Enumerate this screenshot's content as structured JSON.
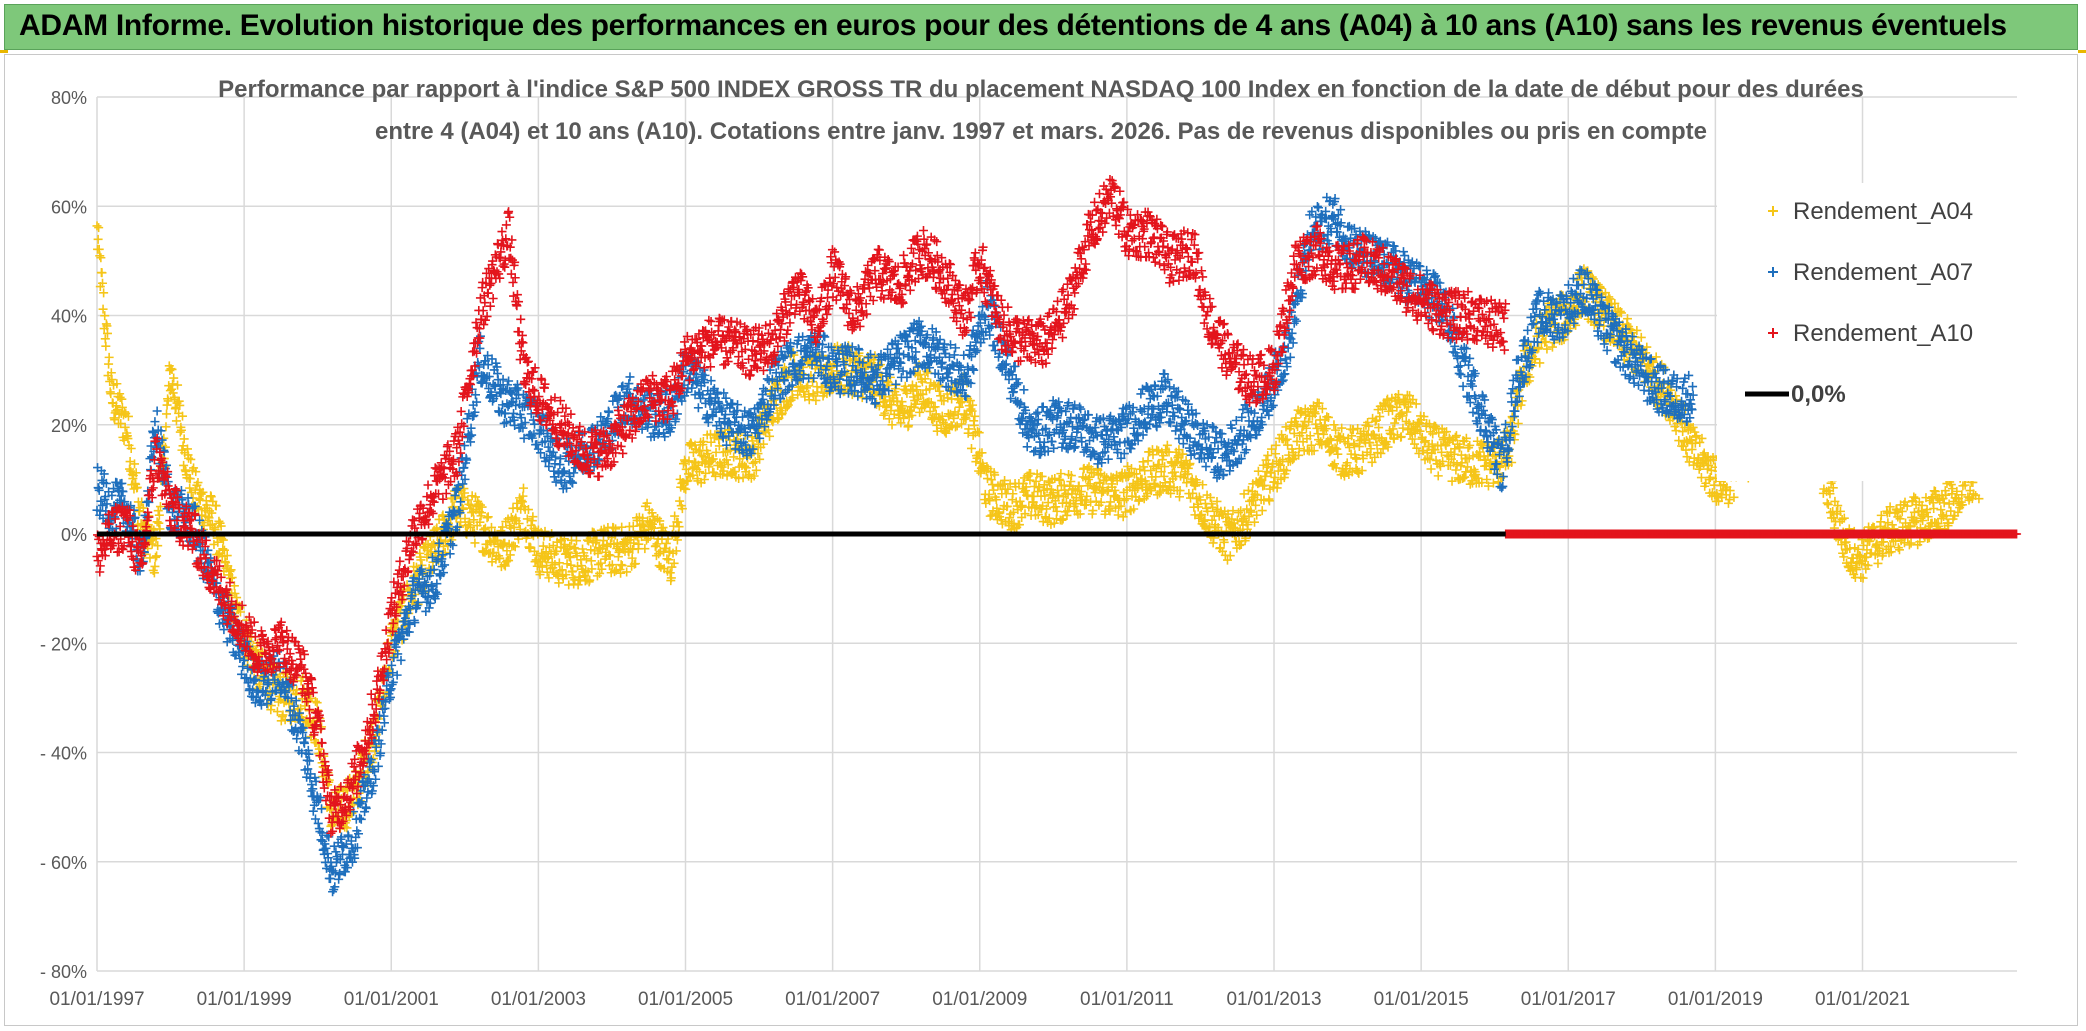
{
  "banner": {
    "title": "ADAM Informe. Evolution historique des performances en euros pour des détentions de 4 ans (A04) à 10 ans (A10) sans les revenus éventuels"
  },
  "colors": {
    "banner": "#7ec87a",
    "a04": "#f5c518",
    "a07": "#1e6fbd",
    "a10": "#e3141c",
    "zero_line": "#000000",
    "grid": "#d9d9d9"
  },
  "chart_data": {
    "type": "scatter",
    "title_line1": "Performance par rapport à l'indice S&P 500 INDEX GROSS TR  du placement NASDAQ 100 Index en fonction de la date de début pour des durées",
    "title_line2": "entre 4 (A04) et 10 ans (A10). Cotations entre janv. 1997 et mars. 2026. Pas de revenus disponibles ou pris en compte",
    "xlabel": "",
    "ylabel": "",
    "x_range": [
      1997.0,
      2023.1
    ],
    "ylim": [
      -80,
      80
    ],
    "y_ticks": [
      80,
      60,
      40,
      20,
      0,
      -20,
      -40,
      -60,
      -80
    ],
    "y_tick_labels": [
      "80%",
      "60%",
      "40%",
      "20%",
      "0%",
      "- 20%",
      "- 40%",
      "- 60%",
      "- 80%"
    ],
    "x_tick_years": [
      1997,
      1999,
      2001,
      2003,
      2005,
      2007,
      2009,
      2011,
      2013,
      2015,
      2017,
      2019,
      2021
    ],
    "x_tick_labels": [
      "01/01/1997",
      "01/01/1999",
      "01/01/2001",
      "01/01/2003",
      "01/01/2005",
      "01/01/2007",
      "01/01/2009",
      "01/01/2011",
      "01/01/2013",
      "01/01/2015",
      "01/01/2017",
      "01/01/2019",
      "01/01/2021"
    ],
    "legend": [
      {
        "name": "Rendement_A04",
        "marker": "plus",
        "color": "#f5c518"
      },
      {
        "name": "Rendement_A07",
        "marker": "plus",
        "color": "#1e6fbd"
      },
      {
        "name": "Rendement_A10",
        "marker": "plus",
        "color": "#e3141c"
      },
      {
        "name": "0,0%",
        "marker": "line",
        "color": "#000000"
      }
    ],
    "series": [
      {
        "name": "Rendement_A04",
        "end": 2022.6,
        "x": [
          1997.0,
          1997.1,
          1997.2,
          1997.4,
          1997.6,
          1997.8,
          1998.0,
          1998.3,
          1998.6,
          1998.9,
          1999.2,
          1999.5,
          1999.8,
          2000.0,
          2000.2,
          2000.5,
          2000.8,
          2001.0,
          2001.3,
          2001.6,
          2001.9,
          2002.2,
          2002.5,
          2002.8,
          2003.0,
          2003.3,
          2003.6,
          2003.9,
          2004.2,
          2004.5,
          2004.8,
          2005.0,
          2005.3,
          2005.6,
          2005.9,
          2006.2,
          2006.5,
          2006.8,
          2007.0,
          2007.3,
          2007.6,
          2007.9,
          2008.2,
          2008.5,
          2008.8,
          2009.1,
          2009.4,
          2009.7,
          2010.0,
          2010.3,
          2010.6,
          2010.9,
          2011.2,
          2011.5,
          2011.8,
          2012.0,
          2012.2,
          2012.4,
          2012.7,
          2013.0,
          2013.3,
          2013.6,
          2013.9,
          2014.2,
          2014.5,
          2014.8,
          2015.1,
          2015.4,
          2015.7,
          2016.0,
          2016.2,
          2016.4,
          2016.7,
          2017.0,
          2017.2,
          2017.5,
          2017.8,
          2018.0,
          2018.2,
          2018.4,
          2018.7,
          2019.0,
          2019.2,
          2019.4,
          2019.7,
          2020.0,
          2020.3,
          2020.6,
          2020.8,
          2021.0,
          2021.3,
          2021.6,
          2021.9,
          2022.2,
          2022.5
        ],
        "y": [
          55,
          40,
          25,
          20,
          2,
          -4,
          30,
          8,
          2,
          -15,
          -25,
          -30,
          -30,
          -35,
          -52,
          -48,
          -35,
          -20,
          -10,
          -3,
          5,
          2,
          -3,
          5,
          -3,
          -5,
          -5,
          -3,
          -3,
          2,
          -5,
          12,
          14,
          15,
          14,
          24,
          30,
          28,
          30,
          30,
          28,
          22,
          27,
          22,
          25,
          8,
          5,
          7,
          6,
          8,
          8,
          7,
          10,
          12,
          11,
          6,
          2,
          -1,
          5,
          12,
          18,
          20,
          15,
          15,
          20,
          22,
          16,
          14,
          13,
          13,
          15,
          30,
          38,
          40,
          45,
          40,
          35,
          32,
          28,
          25,
          15,
          10,
          10,
          14,
          18,
          21,
          20,
          5,
          -3,
          -4,
          0,
          2,
          3,
          6,
          10
        ]
      },
      {
        "name": "Rendement_A07",
        "end": 2018.7,
        "x": [
          1997.0,
          1997.2,
          1997.4,
          1997.6,
          1997.8,
          1998.0,
          1998.3,
          1998.6,
          1998.9,
          1999.2,
          1999.5,
          1999.8,
          2000.0,
          2000.2,
          2000.5,
          2000.8,
          2001.0,
          2001.3,
          2001.6,
          2001.9,
          2002.2,
          2002.5,
          2002.8,
          2003.0,
          2003.3,
          2003.6,
          2003.9,
          2004.2,
          2004.5,
          2004.8,
          2005.0,
          2005.3,
          2005.6,
          2005.9,
          2006.2,
          2006.5,
          2006.8,
          2007.0,
          2007.3,
          2007.6,
          2007.9,
          2008.2,
          2008.5,
          2008.8,
          2009.1,
          2009.4,
          2009.7,
          2010.0,
          2010.3,
          2010.6,
          2010.9,
          2011.2,
          2011.5,
          2011.8,
          2012.0,
          2012.3,
          2012.6,
          2012.9,
          2013.2,
          2013.5,
          2013.8,
          2014.1,
          2014.4,
          2014.7,
          2015.0,
          2015.3,
          2015.6,
          2015.9,
          2016.1,
          2016.3,
          2016.6,
          2016.9,
          2017.2,
          2017.5,
          2017.8,
          2018.1,
          2018.4,
          2018.7
        ],
        "y": [
          8,
          5,
          5,
          -5,
          20,
          5,
          2,
          -10,
          -20,
          -28,
          -25,
          -38,
          -50,
          -62,
          -55,
          -40,
          -25,
          -12,
          -8,
          5,
          32,
          25,
          22,
          20,
          12,
          15,
          18,
          25,
          22,
          22,
          30,
          25,
          20,
          18,
          28,
          32,
          33,
          30,
          30,
          28,
          32,
          35,
          32,
          28,
          42,
          30,
          18,
          20,
          20,
          17,
          18,
          22,
          25,
          20,
          17,
          14,
          19,
          25,
          35,
          55,
          58,
          52,
          50,
          48,
          45,
          42,
          30,
          20,
          12,
          28,
          40,
          40,
          45,
          38,
          33,
          28,
          25,
          25
        ]
      },
      {
        "name": "Rendement_A10",
        "end": 2016.15,
        "x": [
          1997.0,
          1997.2,
          1997.4,
          1997.6,
          1997.8,
          1998.0,
          1998.3,
          1998.6,
          1998.9,
          1999.2,
          1999.5,
          1999.8,
          2000.0,
          2000.2,
          2000.5,
          2000.8,
          2001.0,
          2001.3,
          2001.6,
          2001.9,
          2002.2,
          2002.4,
          2002.6,
          2002.8,
          2003.0,
          2003.3,
          2003.6,
          2003.9,
          2004.2,
          2004.5,
          2004.8,
          2005.0,
          2005.3,
          2005.6,
          2005.9,
          2006.2,
          2006.5,
          2006.8,
          2007.0,
          2007.3,
          2007.6,
          2007.9,
          2008.2,
          2008.5,
          2008.8,
          2009.0,
          2009.3,
          2009.6,
          2009.9,
          2010.2,
          2010.5,
          2010.8,
          2011.0,
          2011.3,
          2011.6,
          2011.9,
          2012.1,
          2012.4,
          2012.7,
          2013.0,
          2013.3,
          2013.6,
          2013.9,
          2014.2,
          2014.5,
          2014.8,
          2015.1,
          2015.4,
          2015.7,
          2016.0
        ],
        "y": [
          -4,
          0,
          2,
          -6,
          15,
          5,
          0,
          -8,
          -15,
          -22,
          -20,
          -25,
          -35,
          -52,
          -45,
          -30,
          -15,
          0,
          8,
          15,
          40,
          48,
          55,
          30,
          25,
          20,
          15,
          15,
          20,
          25,
          25,
          32,
          35,
          35,
          33,
          35,
          45,
          38,
          48,
          40,
          48,
          45,
          52,
          48,
          40,
          50,
          38,
          35,
          35,
          42,
          55,
          62,
          55,
          55,
          50,
          52,
          40,
          32,
          28,
          30,
          50,
          52,
          48,
          50,
          48,
          45,
          42,
          40,
          40,
          38
        ]
      },
      {
        "name": "Rendement_A10 (zero)",
        "x_from": 2016.15,
        "x_to": 2023.1,
        "y": 0
      }
    ]
  }
}
